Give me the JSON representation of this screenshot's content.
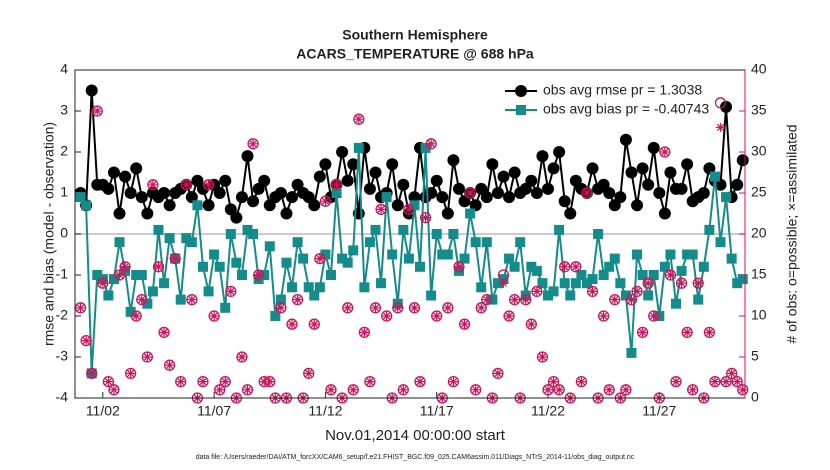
{
  "chart_data": {
    "type": "line",
    "title": [
      "Southern Hemisphere",
      "ACARS_TEMPERATURE @ 688 hPa"
    ],
    "xlabel": "Nov.01,2014 00:00:00 start",
    "ylabel": "rmse and bias (model - observation)",
    "y2label": "# of obs: o=possible; ×=assimilated",
    "footnote": "data file: /Users/raeder/DAI/ATM_forcXX/CAM6_setup/f.e21.FHIST_BGC.f09_025.CAM6assim.011/Diags_NTrS_2014-11/obs_diag_output.nc",
    "x": [
      1,
      1.25,
      1.5,
      1.75,
      2,
      2.25,
      2.5,
      2.75,
      3,
      3.25,
      3.5,
      3.75,
      4,
      4.25,
      4.5,
      4.75,
      5,
      5.25,
      5.5,
      5.75,
      6,
      6.25,
      6.5,
      6.75,
      7,
      7.25,
      7.5,
      7.75,
      8,
      8.25,
      8.5,
      8.75,
      9,
      9.25,
      9.5,
      9.75,
      10,
      10.25,
      10.5,
      10.75,
      11,
      11.25,
      11.5,
      11.75,
      12,
      12.25,
      12.5,
      12.75,
      13,
      13.25,
      13.5,
      13.75,
      14,
      14.25,
      14.5,
      14.75,
      15,
      15.25,
      15.5,
      15.75,
      16,
      16.25,
      16.5,
      16.75,
      17,
      17.25,
      17.5,
      17.75,
      18,
      18.25,
      18.5,
      18.75,
      19,
      19.25,
      19.5,
      19.75,
      20,
      20.25,
      20.5,
      20.75,
      21,
      21.25,
      21.5,
      21.75,
      22,
      22.25,
      22.5,
      22.75,
      23,
      23.25,
      23.5,
      23.75,
      24,
      24.25,
      24.5,
      24.75,
      25,
      25.25,
      25.5,
      25.75,
      26,
      26.25,
      26.5,
      26.75,
      27,
      27.25,
      27.5,
      27.75,
      28,
      28.25,
      28.5,
      28.75,
      29,
      29.25,
      29.5,
      29.75,
      30,
      30.25,
      30.5,
      30.75
    ],
    "series": [
      {
        "name": "obs avg rmse pr = 1.3038",
        "color": "#000000",
        "marker": "circle",
        "values": [
          1.0,
          0.7,
          3.5,
          1.2,
          1.2,
          1.1,
          1.5,
          0.5,
          1.4,
          1.0,
          1.6,
          0.9,
          0.5,
          1.0,
          0.9,
          1.0,
          0.7,
          1.0,
          1.1,
          1.2,
          0.9,
          1.3,
          1.1,
          0.7,
          1.2,
          1.0,
          1.3,
          0.6,
          0.4,
          0.9,
          1.9,
          0.8,
          1.1,
          1.3,
          0.7,
          0.9,
          1.0,
          0.5,
          0.9,
          1.2,
          1.0,
          0.9,
          0.7,
          1.4,
          1.7,
          0.9,
          1.2,
          2.0,
          1.3,
          1.7,
          0.5,
          2.1,
          1.1,
          1.5,
          0.9,
          1.0,
          1.7,
          0.7,
          1.2,
          0.5,
          0.9,
          2.1,
          0.9,
          1.0,
          1.3,
          0.9,
          0.5,
          1.8,
          1.1,
          0.8,
          1.0,
          0.7,
          1.1,
          0.9,
          1.7,
          1.0,
          1.4,
          0.9,
          1.5,
          1.0,
          1.1,
          1.3,
          1.0,
          1.9,
          1.1,
          1.6,
          2.0,
          0.8,
          0.5,
          1.3,
          1.1,
          1.0,
          1.6,
          1.1,
          1.2,
          1.0,
          0.7,
          0.9,
          2.3,
          1.5,
          0.7,
          1.6,
          1.2,
          2.1,
          1.0,
          0.5,
          1.5,
          1.1,
          1.1,
          1.7,
          0.8,
          0.9,
          1.0,
          1.6,
          1.3,
          1.2,
          3.1,
          0.9,
          1.2,
          1.8
        ]
      },
      {
        "name": "obs avg bias pr = -0.40743",
        "color": "#148c8c",
        "marker": "square",
        "values": [
          0.9,
          0.7,
          -3.4,
          -1.0,
          -1.1,
          -1.5,
          -1.1,
          -0.2,
          -0.9,
          -1.9,
          -1.0,
          -1.0,
          -1.7,
          -1.4,
          0.1,
          -1.2,
          -0.1,
          -0.6,
          -1.6,
          -0.1,
          -0.2,
          0.7,
          -0.8,
          -1.4,
          -0.5,
          -0.8,
          -1.8,
          0.0,
          -0.7,
          -1.0,
          0.1,
          0.0,
          -1.1,
          -1.0,
          -0.3,
          -2.0,
          -1.6,
          -0.7,
          -1.3,
          -0.2,
          -0.6,
          -1.3,
          -1.5,
          -1.3,
          -0.5,
          -1.0,
          1.0,
          -0.6,
          -0.7,
          -0.4,
          2.1,
          -1.3,
          -0.2,
          0.1,
          -1.2,
          0.9,
          -0.5,
          -1.7,
          0.1,
          -0.6,
          0.7,
          -0.8,
          2.1,
          -1.5,
          0.0,
          -0.5,
          -0.5,
          0.0,
          -0.9,
          -0.6,
          0.5,
          -0.2,
          -1.3,
          -0.2,
          -1.6,
          -1.2,
          -1.1,
          -0.6,
          -0.8,
          -0.2,
          -1.5,
          -0.8,
          -0.9,
          -1.2,
          -1.5,
          -1.4,
          0.1,
          -1.2,
          -1.5,
          -1.2,
          -1.0,
          -1.2,
          -1.1,
          0.0,
          -1.0,
          -0.8,
          -0.6,
          -1.2,
          -1.5,
          -2.9,
          -0.5,
          -1.0,
          -1.5,
          -1.0,
          -2.0,
          -0.8,
          -0.5,
          -1.7,
          -0.9,
          -0.5,
          -0.5,
          -1.6,
          -0.8,
          0.1,
          1.4,
          -0.2,
          0.9,
          -0.6,
          -1.2,
          -1.1
        ]
      },
      {
        "color": "#d0145a",
        "marker": "circle",
        "axis": "y2",
        "values": [
          11,
          7,
          3,
          35,
          14,
          2,
          1,
          15,
          16,
          3,
          10,
          12,
          5,
          26,
          16,
          8,
          4,
          17,
          2,
          26,
          12,
          0,
          2,
          26,
          10,
          1,
          2,
          13,
          0,
          5,
          1,
          31,
          15,
          2,
          2,
          0,
          11,
          0,
          9,
          12,
          0,
          3,
          9,
          17,
          24,
          1,
          26,
          0,
          11,
          1,
          34,
          8,
          2,
          11,
          23,
          10,
          0,
          11,
          1,
          23,
          11,
          2,
          22,
          31,
          10,
          0,
          11,
          2,
          16,
          9,
          25,
          1,
          11,
          12,
          0,
          3,
          15,
          10,
          12,
          0,
          12,
          9,
          13,
          5,
          1,
          2,
          1,
          16,
          0,
          16,
          2,
          25,
          13,
          0,
          10,
          1,
          12,
          0,
          1,
          12,
          13,
          8,
          14,
          10,
          0,
          30,
          15,
          2,
          14,
          8,
          1,
          14,
          0,
          8,
          2,
          36,
          2,
          3,
          2,
          1
        ]
      },
      {
        "color": "#d0145a",
        "marker": "asterisk",
        "axis": "y2",
        "values": [
          11,
          7,
          3,
          35,
          14,
          2,
          1,
          15,
          16,
          3,
          10,
          12,
          5,
          26,
          16,
          8,
          4,
          17,
          2,
          26,
          12,
          0,
          2,
          26,
          10,
          1,
          2,
          13,
          0,
          5,
          1,
          31,
          15,
          2,
          2,
          0,
          11,
          0,
          9,
          12,
          0,
          3,
          9,
          17,
          24,
          1,
          26,
          0,
          11,
          1,
          34,
          8,
          2,
          11,
          23,
          10,
          0,
          11,
          1,
          23,
          11,
          2,
          22,
          31,
          10,
          0,
          11,
          2,
          16,
          9,
          25,
          1,
          11,
          12,
          0,
          3,
          14,
          10,
          12,
          0,
          12,
          9,
          13,
          5,
          1,
          2,
          1,
          16,
          0,
          16,
          2,
          25,
          13,
          0,
          10,
          1,
          12,
          0,
          1,
          12,
          13,
          8,
          14,
          10,
          0,
          30,
          15,
          2,
          14,
          8,
          1,
          14,
          0,
          8,
          2,
          33,
          2,
          3,
          2,
          1
        ]
      }
    ],
    "xlim": [
      0.75,
      30.85
    ],
    "xticks": [
      {
        "value": 2,
        "label": "11/02"
      },
      {
        "value": 7,
        "label": "11/07"
      },
      {
        "value": 12,
        "label": "11/12"
      },
      {
        "value": 17,
        "label": "11/17"
      },
      {
        "value": 22,
        "label": "11/22"
      },
      {
        "value": 27,
        "label": "11/27"
      }
    ],
    "ylim": [
      -4,
      4
    ],
    "yticks": [
      -4,
      -3,
      -2,
      -1,
      0,
      1,
      2,
      3,
      4
    ],
    "y2lim": [
      0,
      40
    ],
    "y2ticks": [
      0,
      5,
      10,
      15,
      20,
      25,
      30,
      35,
      40
    ],
    "y2color": "#d0145a",
    "zero_line": true,
    "legend": "upper right"
  }
}
